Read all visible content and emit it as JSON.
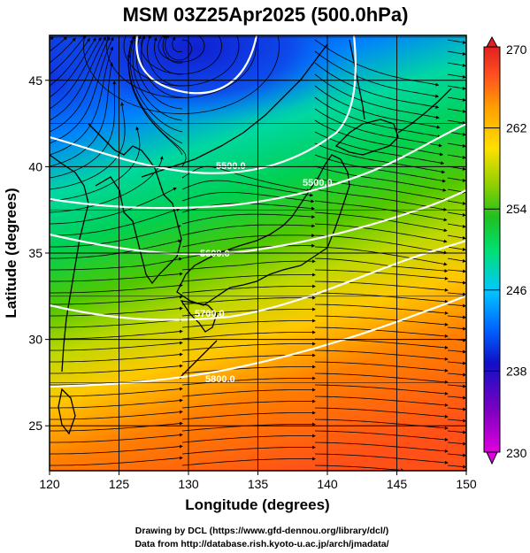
{
  "title": "MSM 03Z25Apr2025 (500.0hPa)",
  "xlabel": "Longitude (degrees)",
  "ylabel": "Latitude  (degrees)",
  "credits": [
    "Drawing by DCL (https://www.gfd-dennou.org/library/dcl/)",
    "Data from http://database.rish.kyoto-u.ac.jp/arch/jmadata/"
  ],
  "map": {
    "lon_range": [
      120,
      150
    ],
    "lat_range": [
      22.4,
      47.6
    ],
    "lon_ticks": [
      120,
      125,
      130,
      135,
      140,
      145,
      150
    ],
    "lat_ticks": [
      25,
      30,
      35,
      40,
      45
    ],
    "variable": "temperature (K), shaded",
    "contour_variable": "geopotential height (m)",
    "contour_labels": [
      {
        "text": "5500.0",
        "lon": 133.5,
        "lat": 40.4
      },
      {
        "text": "5500.0",
        "lon": 142.0,
        "lat": 40.0
      },
      {
        "text": "5600.0",
        "lon": 133.0,
        "lat": 36.0
      },
      {
        "text": "5700.0",
        "lon": 132.5,
        "lat": 32.2
      },
      {
        "text": "5800.0",
        "lon": 133.0,
        "lat": 28.5
      }
    ],
    "vector_field": "wind streamlines",
    "colors": {
      "grid": "#000000",
      "contour": "#ffffff",
      "coast": "#000000"
    }
  },
  "colorbar": {
    "min": 230,
    "max": 270,
    "tick_labels": [
      "270",
      "262",
      "254",
      "246",
      "238",
      "230"
    ],
    "tick_values": [
      270,
      262,
      254,
      246,
      238,
      230
    ],
    "colormap": [
      "#e000e0",
      "#9000c0",
      "#1010c0",
      "#0050ff",
      "#00c0ff",
      "#00e070",
      "#30c000",
      "#a0d000",
      "#ffe000",
      "#ffa000",
      "#ff5020",
      "#e02020"
    ]
  }
}
